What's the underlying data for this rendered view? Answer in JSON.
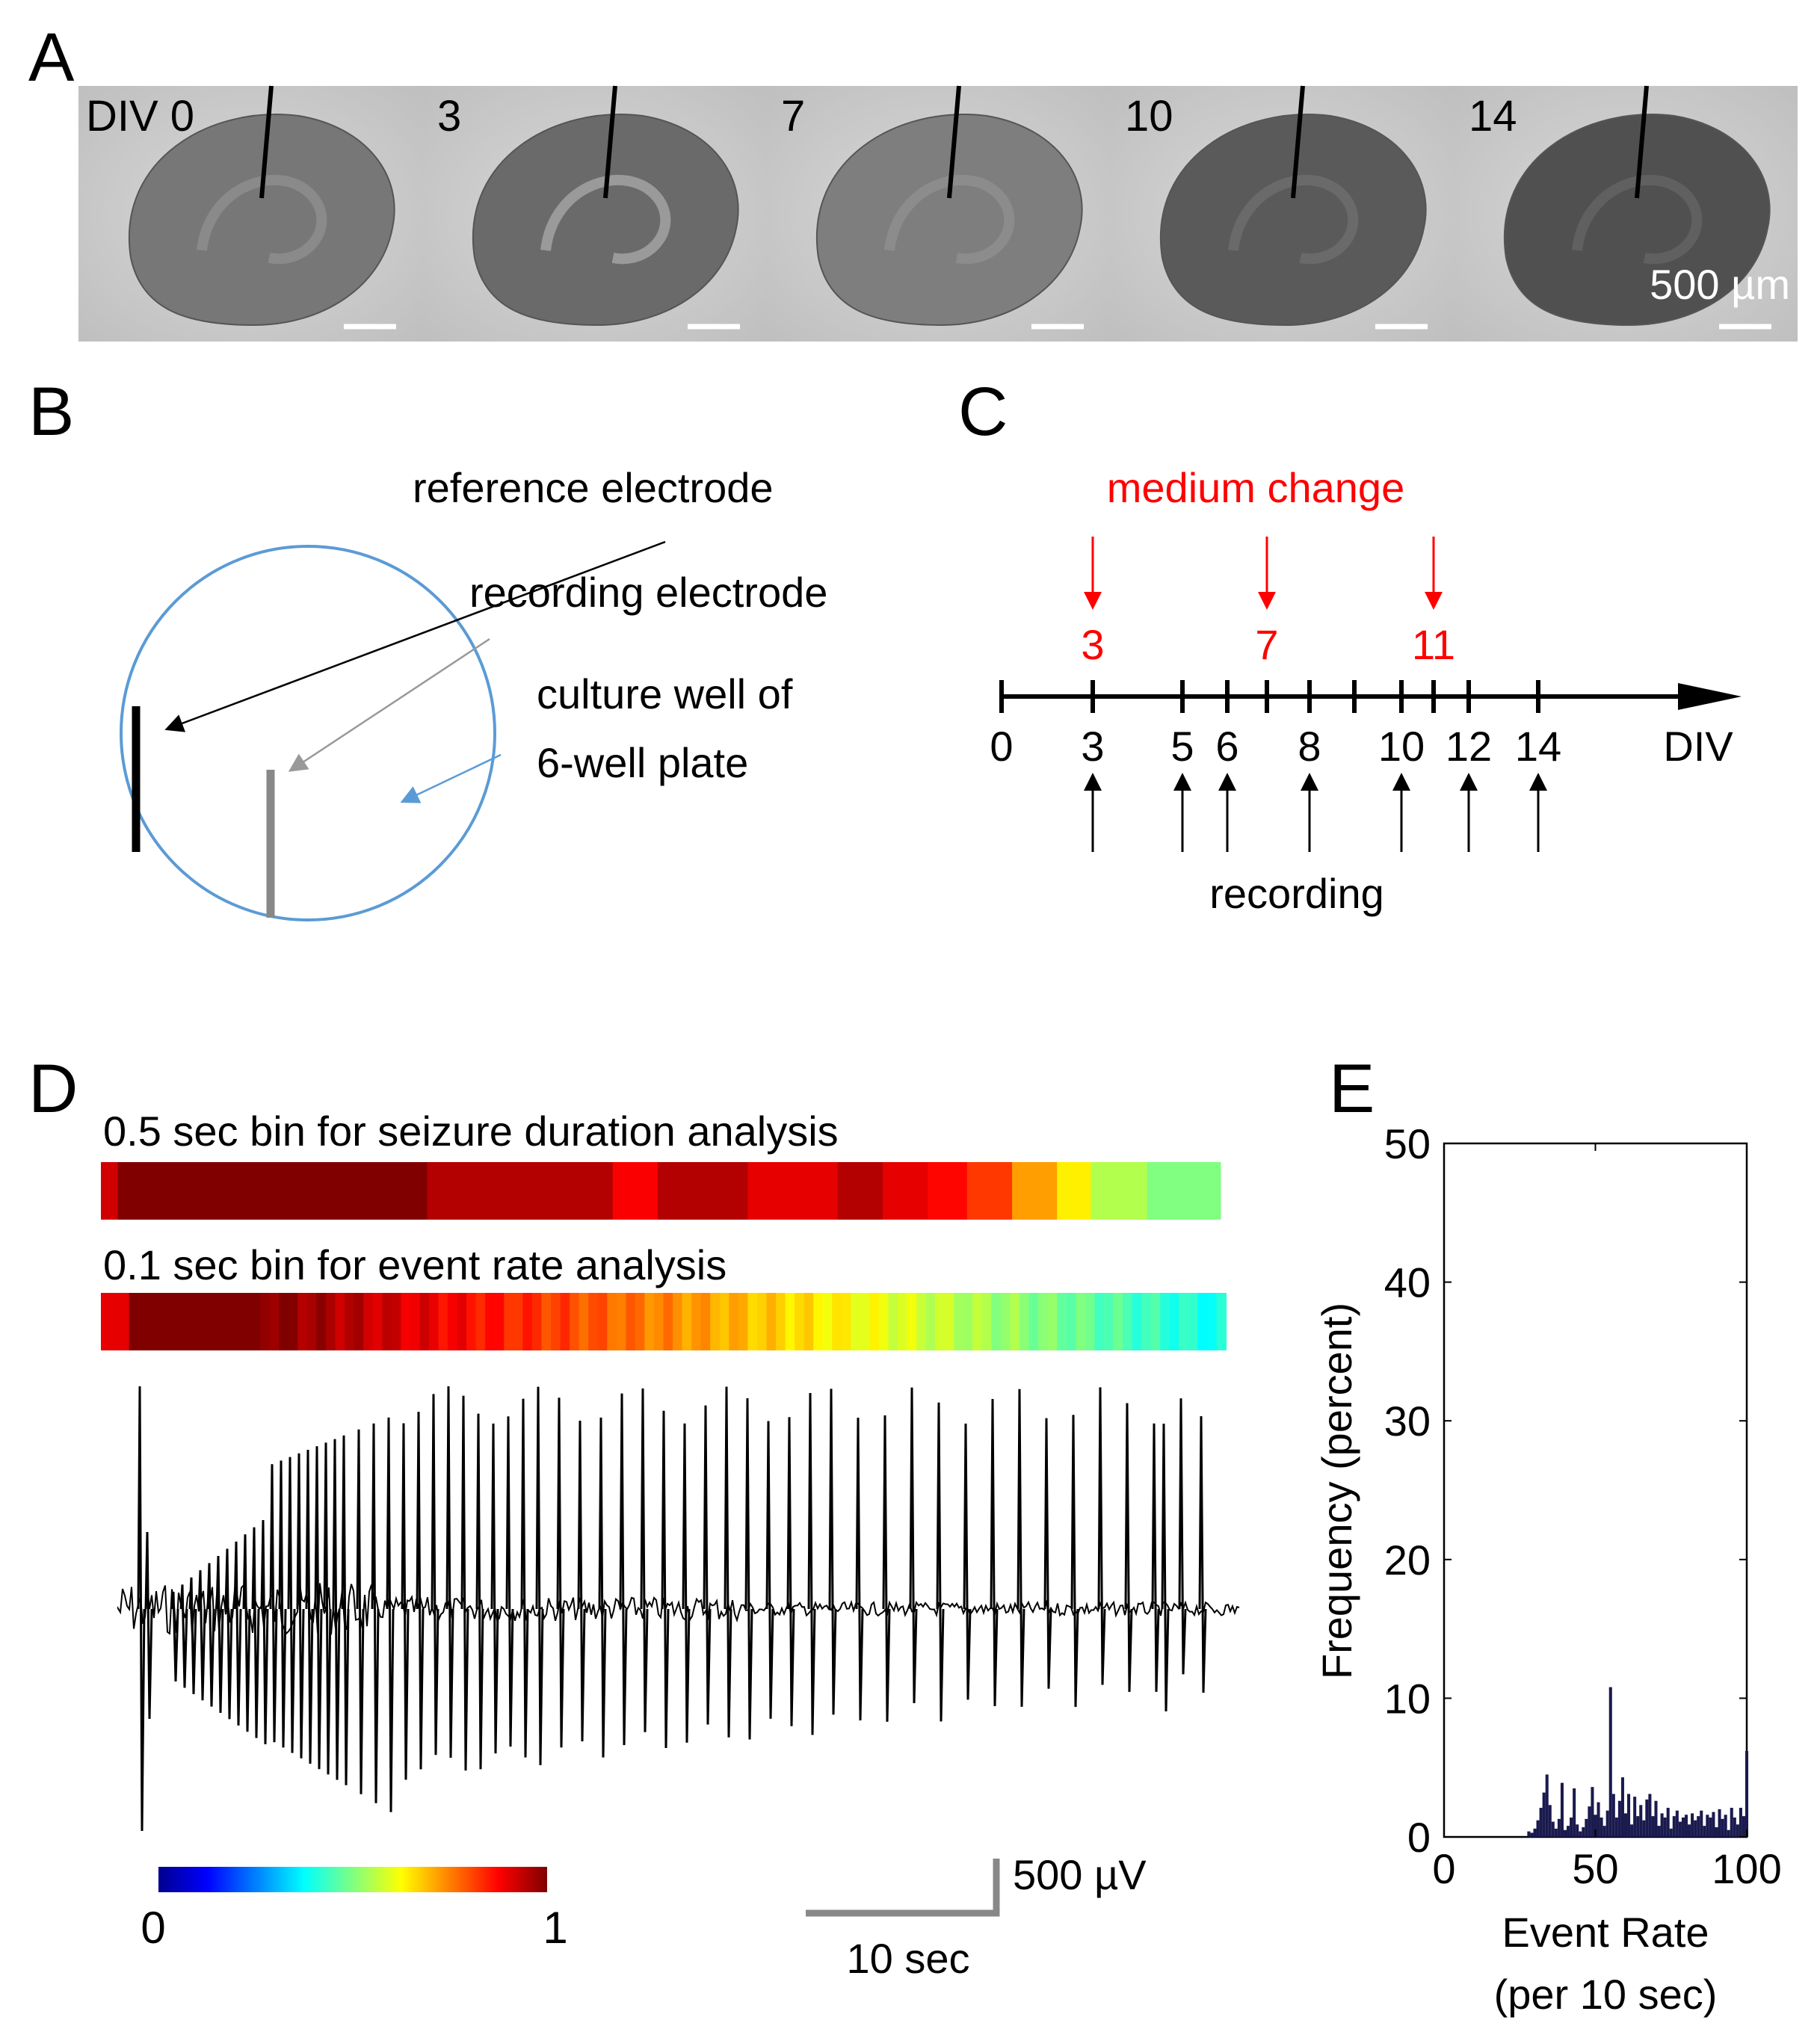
{
  "panel_labels": {
    "a": "A",
    "b": "B",
    "c": "C",
    "d": "D",
    "e": "E"
  },
  "panel_a": {
    "days": [
      "DIV 0",
      "3",
      "7",
      "10",
      "14"
    ],
    "scale_label": "500 µm"
  },
  "panel_b": {
    "reference_label": "reference electrode",
    "recording_label": "recording electrode",
    "well_label_line1": "culture well of",
    "well_label_line2": "6-well plate"
  },
  "panel_c": {
    "medium_change_label": "medium change",
    "medium_change_days": [
      "3",
      "7",
      "11"
    ],
    "tick_labels": [
      "0",
      "3",
      "5",
      "6",
      "8",
      "10",
      "12",
      "14"
    ],
    "axis_label": "DIV",
    "recording_label": "recording"
  },
  "panel_d": {
    "bar1_label": "0.5 sec bin for seizure duration analysis",
    "bar2_label": "0.1 sec bin for event rate analysis",
    "colorbar_min": "0",
    "colorbar_max": "1",
    "scalebar_voltage": "500 µV",
    "scalebar_time": "10 sec",
    "colors": {
      "dark_red": "#7f0000",
      "red": "#e00000",
      "yellow": "#ffff00",
      "cyan": "#00ffff",
      "blue": "#00008f"
    }
  },
  "chart_data": {
    "type": "bar",
    "title": "",
    "xlabel": "Event Rate",
    "xlabel_line2": "(per 10 sec)",
    "ylabel": "Frequency (percent)",
    "xlim": [
      0,
      100
    ],
    "ylim": [
      0,
      50
    ],
    "xticks": [
      "0",
      "50",
      "100"
    ],
    "yticks": [
      "0",
      "10",
      "20",
      "30",
      "40",
      "50"
    ],
    "bar_color": "#1a1a4e",
    "x": [
      28,
      29,
      30,
      31,
      32,
      33,
      34,
      35,
      36,
      37,
      38,
      39,
      40,
      41,
      42,
      43,
      44,
      45,
      46,
      47,
      48,
      49,
      50,
      51,
      52,
      53,
      54,
      55,
      56,
      57,
      58,
      59,
      60,
      61,
      62,
      63,
      64,
      65,
      66,
      67,
      68,
      69,
      70,
      71,
      72,
      73,
      74,
      75,
      76,
      77,
      78,
      79,
      80,
      81,
      82,
      83,
      84,
      85,
      86,
      87,
      88,
      89,
      90,
      91,
      92,
      93,
      94,
      95,
      96,
      97,
      98,
      99,
      100
    ],
    "values": [
      0.4,
      0.3,
      0.6,
      1.2,
      2.1,
      3.2,
      4.5,
      2.3,
      1.1,
      0.6,
      1.3,
      3.9,
      0.5,
      0.8,
      1.4,
      3.5,
      0.9,
      0.4,
      0.7,
      1.3,
      2.2,
      3.6,
      1.6,
      2.5,
      1.4,
      0.8,
      1.9,
      10.8,
      3.1,
      1.4,
      2.6,
      4.3,
      1.7,
      3.1,
      0.9,
      2.9,
      1.5,
      2.3,
      1.2,
      2.7,
      3.1,
      1.5,
      2.6,
      0.8,
      1.7,
      1.4,
      2.1,
      0.6,
      1.5,
      1.9,
      1.1,
      1.4,
      1.6,
      0.9,
      1.7,
      1.2,
      1.5,
      1.9,
      0.8,
      1.6,
      1.4,
      1.8,
      0.7,
      2.0,
      1.3,
      1.6,
      0.5,
      2.1,
      1.4,
      0.9,
      2.1,
      1.5,
      6.2
    ]
  }
}
